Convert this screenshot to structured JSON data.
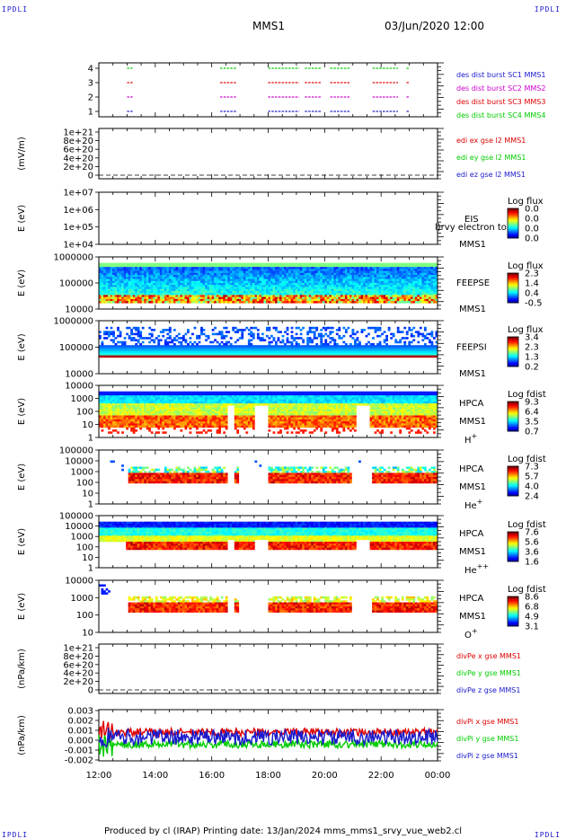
{
  "corners": {
    "tl": "IPDLI",
    "tr": "IPDLI",
    "bl": "IPDLI",
    "br": "IPDLI"
  },
  "header": {
    "mission": "MMS1",
    "date": "03/Jun/2020 12:00"
  },
  "footer": {
    "text": "Produced by cl (IRAP)   Printing date: 13/Jan/2024   mms_mms1_srvy_vue_web2.cl"
  },
  "colors": {
    "c1": "#1a1acc",
    "c2": "#cc00cc",
    "c3": "#dd0000",
    "c4": "#00cc00",
    "red": "#dd0000",
    "green": "#00cc00",
    "blue": "#1a1acc"
  },
  "chart_data": [
    {
      "type": "line",
      "panel": "burst",
      "yticks": [
        "4",
        "3",
        "2",
        "1"
      ],
      "legend": [
        {
          "text": "des dist burst SC1 MMS1",
          "color": "c1"
        },
        {
          "text": "des dist burst SC2 MMS2",
          "color": "c2"
        },
        {
          "text": "des dist burst SC3 MMS3",
          "color": "c3"
        },
        {
          "text": "des dist burst SC4 MMS4",
          "color": "c4"
        }
      ],
      "segments_hours": [
        [
          13.0,
          13.2
        ],
        [
          16.3,
          16.9
        ],
        [
          18.0,
          19.1
        ],
        [
          19.3,
          19.9
        ],
        [
          20.2,
          20.9
        ],
        [
          21.7,
          22.6
        ],
        [
          22.9,
          23.0
        ]
      ]
    },
    {
      "type": "line",
      "panel": "edi",
      "ylabel": "(mV/m)",
      "yticks": [
        "1e+21",
        "8e+20",
        "6e+20",
        "4e+20",
        "2e+20",
        "0"
      ],
      "legend": [
        {
          "text": "edi ex gse l2 MMS1",
          "color": "red"
        },
        {
          "text": "edi ey gse l2 MMS1",
          "color": "green"
        },
        {
          "text": "edi ez gse l2 MMS1",
          "color": "blue"
        }
      ]
    },
    {
      "type": "heatmap",
      "panel": "eis",
      "ylabel": "E (eV)",
      "yticks": [
        "1e+07",
        "1e+06",
        "1e+05",
        "1e+04"
      ],
      "instr": "EIS",
      "sc": "MMS1",
      "overlay": "l)rvy electron to",
      "cbar_title": "Log flux",
      "cbar_ticks": [
        "0.0",
        "0.0",
        "0.0",
        "0.0"
      ]
    },
    {
      "type": "heatmap",
      "panel": "feepse",
      "ylabel": "E (eV)",
      "yticks": [
        "1000000",
        "100000",
        "10000"
      ],
      "instr": "FEEPSE",
      "sc": "MMS1",
      "cbar_title": "Log flux",
      "cbar_ticks": [
        "2.3",
        "1.4",
        "0.4",
        "-0.5"
      ]
    },
    {
      "type": "heatmap",
      "panel": "feepsi",
      "ylabel": "E (eV)",
      "yticks": [
        "1000000",
        "100000",
        "10000"
      ],
      "instr": "FEEPSI",
      "sc": "MMS1",
      "cbar_title": "Log flux",
      "cbar_ticks": [
        "3.4",
        "2.3",
        "1.3",
        "0.2"
      ]
    },
    {
      "type": "heatmap",
      "panel": "hpca-h",
      "ylabel": "E (eV)",
      "yticks": [
        "10000",
        "1000",
        "100",
        "10",
        "1"
      ],
      "instr": "HPCA",
      "sc": "MMS1",
      "species": "H",
      "sup": "+",
      "cbar_title": "Log fdist",
      "cbar_ticks": [
        "9.3",
        "6.4",
        "3.5",
        "0.7"
      ]
    },
    {
      "type": "heatmap",
      "panel": "hpca-he",
      "ylabel": "E (eV)",
      "yticks": [
        "100000",
        "10000",
        "1000",
        "100",
        "10",
        "1"
      ],
      "instr": "HPCA",
      "sc": "MMS1",
      "species": "He",
      "sup": "+",
      "cbar_title": "Log fdist",
      "cbar_ticks": [
        "7.3",
        "5.7",
        "4.0",
        "2.4"
      ]
    },
    {
      "type": "heatmap",
      "panel": "hpca-he2",
      "ylabel": "E (eV)",
      "yticks": [
        "100000",
        "10000",
        "1000",
        "100",
        "10",
        "1"
      ],
      "instr": "HPCA",
      "sc": "MMS1",
      "species": "He",
      "sup": "++",
      "cbar_title": "Log fdist",
      "cbar_ticks": [
        "7.6",
        "5.6",
        "3.6",
        "1.6"
      ]
    },
    {
      "type": "heatmap",
      "panel": "hpca-o",
      "ylabel": "E (eV)",
      "yticks": [
        "10000",
        "1000",
        "100",
        "10"
      ],
      "instr": "HPCA",
      "sc": "MMS1",
      "species": "O",
      "sup": "+",
      "cbar_title": "Log fdist",
      "cbar_ticks": [
        "8.6",
        "6.8",
        "4.9",
        "3.1"
      ]
    },
    {
      "type": "line",
      "panel": "divpe",
      "ylabel": "(nPa/km)",
      "yticks": [
        "1e+21",
        "8e+20",
        "6e+20",
        "4e+20",
        "2e+20",
        "0"
      ],
      "legend": [
        {
          "text": "divPe x gse MMS1",
          "color": "red"
        },
        {
          "text": "divPe y gse MMS1",
          "color": "green"
        },
        {
          "text": "divPe z gse MMS1",
          "color": "blue"
        }
      ]
    },
    {
      "type": "line",
      "panel": "divpi",
      "ylabel": "(nPa/km)",
      "yticks": [
        "0.003",
        "0.002",
        "0.001",
        "0.000",
        "-0.001",
        "-0.002"
      ],
      "ylim": [
        -0.002,
        0.003
      ],
      "legend": [
        {
          "text": "divPi x gse MMS1",
          "color": "red"
        },
        {
          "text": "divPi y gse MMS1",
          "color": "green"
        },
        {
          "text": "divPi z gse MMS1",
          "color": "blue"
        }
      ],
      "series": [
        {
          "color": "red",
          "mean": 0.0008,
          "spread": 0.0004
        },
        {
          "color": "green",
          "mean": -0.0004,
          "spread": 0.0004
        },
        {
          "color": "blue",
          "mean": 0.0003,
          "spread": 0.0008
        }
      ]
    }
  ],
  "xaxis": {
    "ticks": [
      "12:00",
      "14:00",
      "16:00",
      "18:00",
      "20:00",
      "22:00",
      "00:00"
    ],
    "start_hour": 12,
    "end_hour": 24
  }
}
